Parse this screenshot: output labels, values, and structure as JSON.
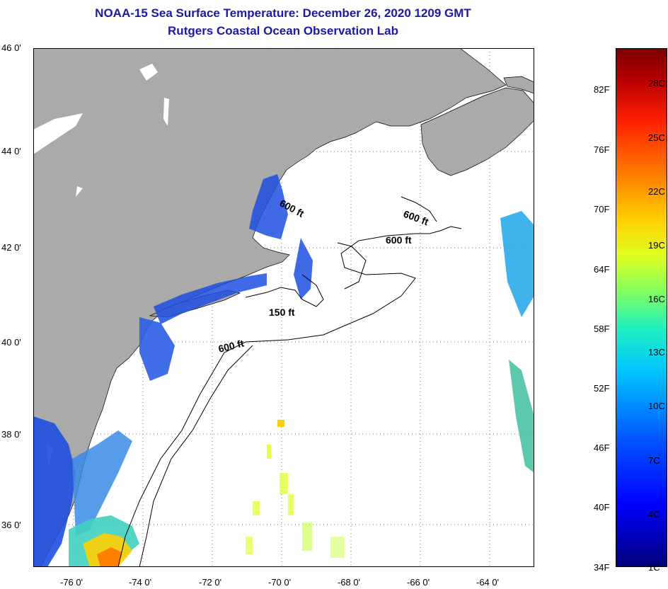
{
  "header": {
    "title": "NOAA-15 Sea Surface Temperature:  December 26, 2020 1209 GMT",
    "subtitle": "Rutgers Coastal Ocean Observation Lab"
  },
  "axes": {
    "latitude_labels": [
      "46 0'",
      "44 0'",
      "42 0'",
      "40 0'",
      "38 0'",
      "36 0'"
    ],
    "longitude_labels": [
      "-76 0'",
      "-74 0'",
      "-72 0'",
      "-70 0'",
      "-68 0'",
      "-66 0'",
      "-64 0'"
    ]
  },
  "contours": {
    "label_600_a": "600 ft",
    "label_600_b": "600 ft",
    "label_600_c": "600 ft",
    "label_600_d": "600 ft",
    "label_150": "150 ft"
  },
  "colorbar": {
    "fahrenheit": [
      "82F",
      "76F",
      "70F",
      "64F",
      "58F",
      "52F",
      "46F",
      "40F",
      "34F"
    ],
    "celsius": [
      "28C",
      "25C",
      "22C",
      "19C",
      "16C",
      "13C",
      "10C",
      "7C",
      "4C",
      "1C"
    ]
  },
  "colors": {
    "land": "#aaaaaa",
    "title": "#1a1aa6",
    "cold_water": "#1e4fe0",
    "warm_water": "#ff7a00"
  }
}
